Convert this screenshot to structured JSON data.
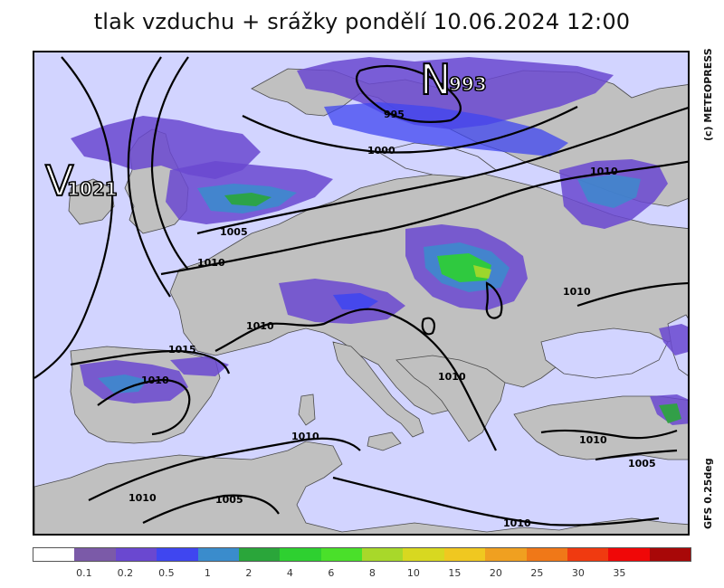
{
  "title": "tlak vzduchu + srážky pondělí 10.06.2024 12:00",
  "credits": {
    "top": "(c) METEOPRESS",
    "bottom": "GFS 0.25deg"
  },
  "colors": {
    "sea": "#d2d4ff",
    "land": "#c0c0c0",
    "isobar": "#000000",
    "border": "#505050"
  },
  "pressure_centers": [
    {
      "type": "V",
      "value": "1021"
    },
    {
      "type": "N",
      "value": "993"
    }
  ],
  "isobar_labels": [
    "995",
    "1000",
    "1005",
    "1010",
    "1010",
    "1010",
    "1015",
    "1010",
    "1010",
    "1010",
    "1010",
    "1010",
    "1005",
    "1005",
    "1010",
    "1010",
    "1010"
  ],
  "legend": {
    "colors": [
      "#ffffff",
      "#7b5aa8",
      "#6a48d0",
      "#3f46f0",
      "#3a8ccc",
      "#2aa63a",
      "#2ed030",
      "#4ae02a",
      "#a8d82a",
      "#d8d820",
      "#f0c820",
      "#f0a020",
      "#f07818",
      "#f03a10",
      "#f00808",
      "#a80808"
    ],
    "labels": [
      "0.1",
      "0.2",
      "0.5",
      "1",
      "2",
      "4",
      "6",
      "8",
      "10",
      "15",
      "20",
      "25",
      "30",
      "35"
    ]
  }
}
